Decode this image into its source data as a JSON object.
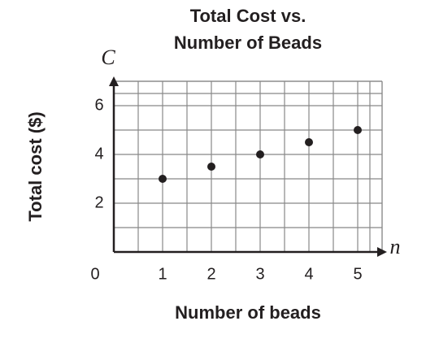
{
  "chart_data": {
    "type": "scatter",
    "title": "Total Cost vs.",
    "subtitle": "Number of Beads",
    "x_label": "Number of beads",
    "y_label": "Total cost ($)",
    "x_var": "n",
    "y_var": "C",
    "x": [
      1,
      2,
      3,
      4,
      5
    ],
    "values": [
      3,
      3.5,
      4,
      4.5,
      5
    ],
    "color": "#231f20",
    "xlim": [
      0,
      5.5
    ],
    "ylim": [
      0,
      7
    ],
    "xticks": [
      0,
      1,
      2,
      3,
      4,
      5
    ],
    "yticks": [
      2,
      4,
      6
    ],
    "grid": true
  }
}
